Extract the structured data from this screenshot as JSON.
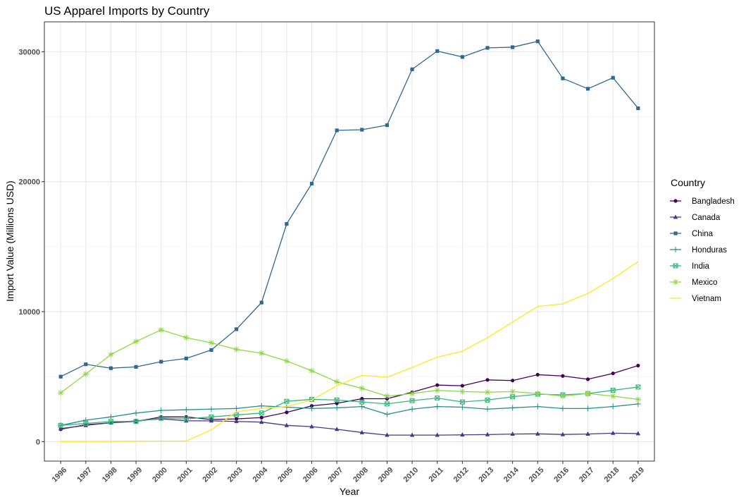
{
  "chart_data": {
    "type": "line",
    "title": "US Apparel Imports by Country",
    "xlabel": "Year",
    "ylabel": "Import Value (Millions USD)",
    "x": [
      1996,
      1997,
      1998,
      1999,
      2000,
      2001,
      2002,
      2003,
      2004,
      2005,
      2006,
      2007,
      2008,
      2009,
      2010,
      2011,
      2012,
      2013,
      2014,
      2015,
      2016,
      2017,
      2018,
      2019
    ],
    "xlim": [
      1995.35,
      2019.65
    ],
    "ylim": [
      -1500,
      32300
    ],
    "yticks": [
      0,
      10000,
      20000,
      30000
    ],
    "grid": true,
    "legend_title": "Country",
    "legend_position": "right",
    "series": [
      {
        "name": "Bangladesh",
        "color": "#440154",
        "marker": "circle",
        "values": [
          950,
          1300,
          1450,
          1550,
          1900,
          1900,
          1700,
          1750,
          1850,
          2250,
          2750,
          2950,
          3300,
          3300,
          3800,
          4350,
          4300,
          4750,
          4700,
          5150,
          5050,
          4800,
          5250,
          5850
        ]
      },
      {
        "name": "Canada",
        "color": "#443A83",
        "marker": "triangle",
        "values": [
          1000,
          1250,
          1450,
          1600,
          1750,
          1600,
          1600,
          1550,
          1500,
          1250,
          1150,
          950,
          700,
          500,
          500,
          500,
          520,
          540,
          580,
          600,
          550,
          580,
          650,
          620
        ]
      },
      {
        "name": "China",
        "color": "#31688E",
        "marker": "square",
        "values": [
          5000,
          5950,
          5650,
          5750,
          6150,
          6400,
          7050,
          8650,
          10700,
          16750,
          19850,
          23950,
          24000,
          24350,
          28650,
          30050,
          29600,
          30300,
          30350,
          30800,
          27950,
          27150,
          28000,
          25650
        ]
      },
      {
        "name": "Honduras",
        "color": "#21908C",
        "marker": "plus",
        "values": [
          1250,
          1650,
          1900,
          2200,
          2400,
          2450,
          2500,
          2550,
          2750,
          2650,
          2550,
          2600,
          2700,
          2100,
          2500,
          2700,
          2650,
          2500,
          2600,
          2700,
          2550,
          2550,
          2700,
          2900
        ]
      },
      {
        "name": "India",
        "color": "#35B779",
        "marker": "boxcross",
        "values": [
          1250,
          1400,
          1550,
          1550,
          1800,
          1750,
          1900,
          2050,
          2200,
          3100,
          3250,
          3200,
          3050,
          2900,
          3150,
          3350,
          3050,
          3200,
          3450,
          3650,
          3600,
          3700,
          3950,
          4200
        ]
      },
      {
        "name": "Mexico",
        "color": "#8FD744",
        "marker": "asterisk",
        "values": [
          3750,
          5200,
          6700,
          7700,
          8600,
          8000,
          7600,
          7100,
          6800,
          6200,
          5450,
          4600,
          4100,
          3500,
          3700,
          3950,
          3850,
          3800,
          3850,
          3700,
          3500,
          3700,
          3500,
          3250
        ]
      },
      {
        "name": "Vietnam",
        "color": "#FDE725",
        "marker": "none",
        "values": [
          0,
          10,
          15,
          30,
          40,
          50,
          900,
          2300,
          2550,
          2700,
          3200,
          4300,
          5100,
          4950,
          5700,
          6500,
          6950,
          8000,
          9200,
          10400,
          10600,
          11400,
          12550,
          13850
        ]
      }
    ]
  }
}
